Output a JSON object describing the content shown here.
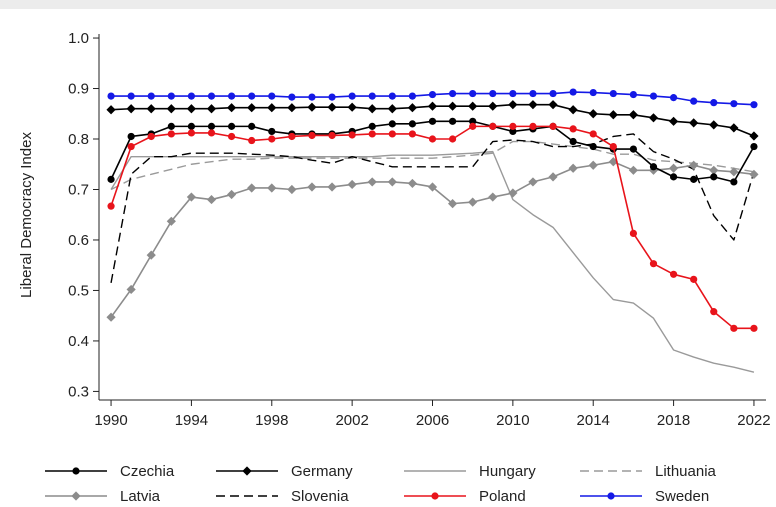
{
  "chart_data": {
    "type": "line",
    "title": "",
    "xlabel": "",
    "ylabel": "Liberal Democracy Index",
    "xlim": [
      1990,
      2022
    ],
    "ylim": [
      0.3,
      1.0
    ],
    "x_ticks": [
      1990,
      1994,
      1998,
      2002,
      2006,
      2010,
      2014,
      2018,
      2022
    ],
    "y_ticks": [
      0.3,
      0.4,
      0.5,
      0.6,
      0.7,
      0.8,
      0.9,
      1.0
    ],
    "y_tick_labels": [
      "0.3",
      "0.4",
      "0.5",
      "0.6",
      "0.7",
      "0.8",
      "0.9",
      "1.0"
    ],
    "grid": false,
    "legend_position": "bottom",
    "x": [
      1990,
      1991,
      1992,
      1993,
      1994,
      1995,
      1996,
      1997,
      1998,
      1999,
      2000,
      2001,
      2002,
      2003,
      2004,
      2005,
      2006,
      2007,
      2008,
      2009,
      2010,
      2011,
      2012,
      2013,
      2014,
      2015,
      2016,
      2017,
      2018,
      2019,
      2020,
      2021,
      2022
    ],
    "series": [
      {
        "name": "Czechia",
        "color": "#000000",
        "line": "solid",
        "marker": "circle",
        "values": [
          0.72,
          0.805,
          0.81,
          0.825,
          0.825,
          0.825,
          0.825,
          0.825,
          0.815,
          0.81,
          0.81,
          0.81,
          0.815,
          0.825,
          0.83,
          0.83,
          0.835,
          0.835,
          0.835,
          0.825,
          0.815,
          0.82,
          0.825,
          0.795,
          0.785,
          0.78,
          0.78,
          0.745,
          0.725,
          0.72,
          0.725,
          0.715,
          0.785
        ]
      },
      {
        "name": "Germany",
        "color": "#000000",
        "line": "solid",
        "marker": "diamond",
        "values": [
          0.858,
          0.86,
          0.86,
          0.86,
          0.86,
          0.86,
          0.862,
          0.862,
          0.862,
          0.862,
          0.863,
          0.863,
          0.863,
          0.86,
          0.86,
          0.862,
          0.865,
          0.865,
          0.865,
          0.865,
          0.868,
          0.868,
          0.868,
          0.858,
          0.85,
          0.848,
          0.848,
          0.842,
          0.835,
          0.832,
          0.828,
          0.822,
          0.806
        ]
      },
      {
        "name": "Hungary",
        "color": "#9a9a9a",
        "line": "solid",
        "marker": "none",
        "values": [
          0.7,
          0.765,
          0.765,
          0.765,
          0.765,
          0.765,
          0.765,
          0.765,
          0.765,
          0.765,
          0.765,
          0.765,
          0.765,
          0.765,
          0.768,
          0.768,
          0.768,
          0.77,
          0.772,
          0.775,
          0.68,
          0.65,
          0.625,
          0.575,
          0.525,
          0.482,
          0.475,
          0.445,
          0.382,
          0.368,
          0.356,
          0.348,
          0.338
        ]
      },
      {
        "name": "Lithuania",
        "color": "#9a9a9a",
        "line": "dashed",
        "marker": "none",
        "values": [
          0.7,
          0.72,
          0.73,
          0.74,
          0.75,
          0.755,
          0.76,
          0.76,
          0.762,
          0.762,
          0.762,
          0.762,
          0.762,
          0.762,
          0.762,
          0.762,
          0.762,
          0.765,
          0.768,
          0.772,
          0.795,
          0.795,
          0.79,
          0.785,
          0.78,
          0.77,
          0.77,
          0.758,
          0.755,
          0.752,
          0.748,
          0.742,
          0.735
        ]
      },
      {
        "name": "Latvia",
        "color": "#8c8c8c",
        "line": "solid",
        "marker": "diamond",
        "values": [
          0.447,
          0.502,
          0.57,
          0.637,
          0.685,
          0.68,
          0.69,
          0.703,
          0.703,
          0.7,
          0.705,
          0.705,
          0.71,
          0.715,
          0.715,
          0.712,
          0.705,
          0.672,
          0.675,
          0.685,
          0.693,
          0.715,
          0.725,
          0.742,
          0.748,
          0.755,
          0.738,
          0.738,
          0.742,
          0.748,
          0.738,
          0.735,
          0.73
        ]
      },
      {
        "name": "Slovenia",
        "color": "#000000",
        "line": "dashed",
        "marker": "none",
        "values": [
          0.515,
          0.73,
          0.765,
          0.765,
          0.772,
          0.772,
          0.772,
          0.77,
          0.768,
          0.765,
          0.758,
          0.752,
          0.765,
          0.755,
          0.745,
          0.745,
          0.745,
          0.745,
          0.745,
          0.795,
          0.798,
          0.795,
          0.785,
          0.785,
          0.79,
          0.805,
          0.81,
          0.775,
          0.76,
          0.74,
          0.648,
          0.6,
          0.735
        ]
      },
      {
        "name": "Poland",
        "color": "#e8141b",
        "line": "solid",
        "marker": "circle",
        "values": [
          0.667,
          0.785,
          0.805,
          0.81,
          0.812,
          0.812,
          0.805,
          0.797,
          0.8,
          0.805,
          0.807,
          0.807,
          0.808,
          0.81,
          0.81,
          0.81,
          0.8,
          0.8,
          0.825,
          0.825,
          0.825,
          0.825,
          0.825,
          0.82,
          0.81,
          0.785,
          0.613,
          0.553,
          0.532,
          0.522,
          0.458,
          0.425,
          0.425
        ]
      },
      {
        "name": "Sweden",
        "color": "#1419e6",
        "line": "solid",
        "marker": "circle",
        "values": [
          0.885,
          0.885,
          0.885,
          0.885,
          0.885,
          0.885,
          0.885,
          0.885,
          0.885,
          0.883,
          0.883,
          0.883,
          0.885,
          0.885,
          0.885,
          0.885,
          0.888,
          0.89,
          0.89,
          0.89,
          0.89,
          0.89,
          0.89,
          0.893,
          0.892,
          0.89,
          0.888,
          0.885,
          0.882,
          0.875,
          0.872,
          0.87,
          0.868
        ]
      }
    ],
    "legend_rows": [
      [
        "Czechia",
        "Germany",
        "Hungary",
        "Lithuania"
      ],
      [
        "Latvia",
        "Slovenia",
        "Poland",
        "Sweden"
      ]
    ]
  }
}
